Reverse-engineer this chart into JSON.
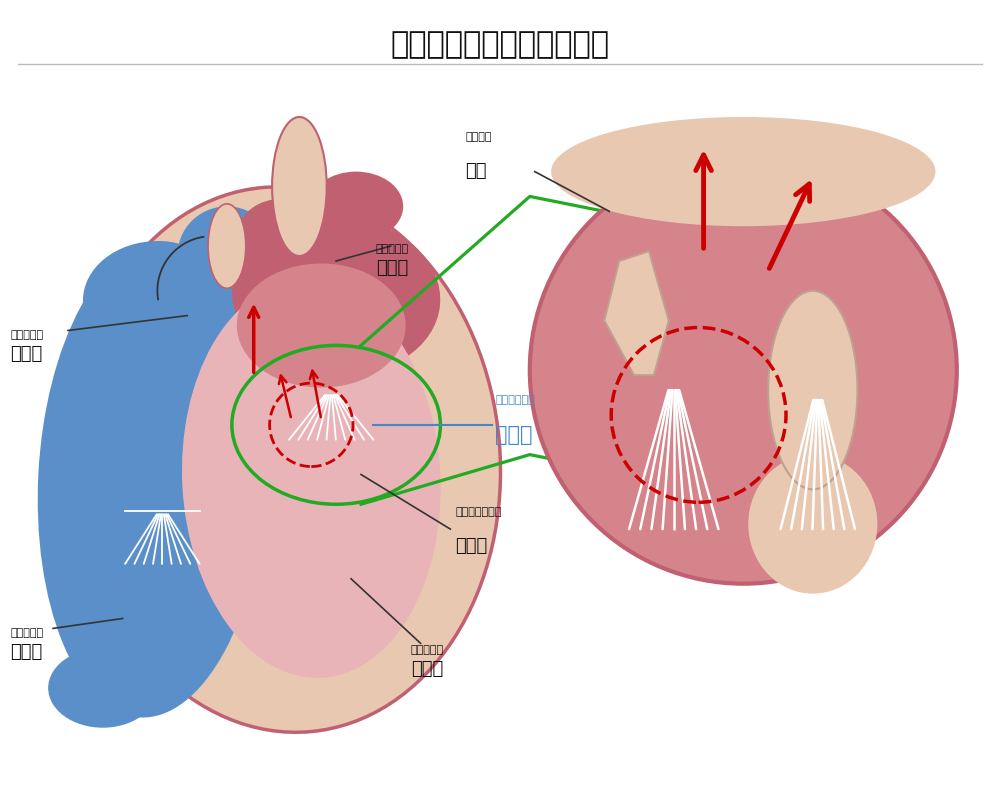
{
  "title": "一次性の僧帽弁閉鎖不全症",
  "title_fontsize": 22,
  "bg_color": "#ffffff",
  "labels": {
    "right_atrium_ruby": "うしんぼう",
    "right_atrium": "右心房",
    "right_ventricle_ruby": "うしんしつ",
    "right_ventricle": "右心室",
    "left_atrium_ruby": "さしんぼう",
    "left_atrium": "左心房",
    "left_ventricle_ruby": "さしんしつ",
    "left_ventricle": "左心室",
    "mitral_ruby": "そうぼうべん",
    "mitral": "僧帽弁",
    "chordae_ruby": "けんさく",
    "chordae": "腱索",
    "papillary_ruby": "にゅうとうきん",
    "papillary": "乳頭筋"
  },
  "colors": {
    "blue_heart": "#5b8fc9",
    "pink_dark": "#c06070",
    "pink_mid": "#d4848a",
    "pink_light": "#e8b4b8",
    "beige": "#e8c8b0",
    "white": "#ffffff",
    "red_arrow": "#cc0000",
    "green": "#22aa22",
    "blue_label": "#4488cc",
    "black": "#333333"
  }
}
